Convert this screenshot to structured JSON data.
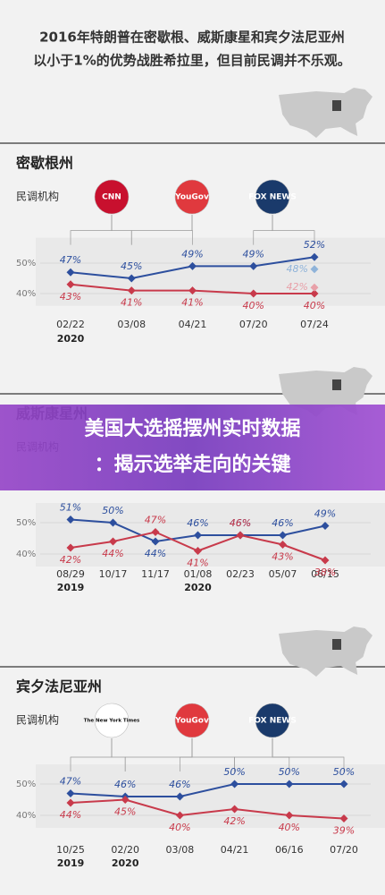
{
  "header": {
    "line1": "2016年特朗普在密歇根、威斯康星和宾夕法尼亚州",
    "line2": "以小于1%的优势战胜希拉里，但目前民调并不乐观。"
  },
  "banner": {
    "line1": "美国大选摇摆州实时数据",
    "line2": "：揭示选举走向的关键"
  },
  "chart_data": [
    {
      "type": "line",
      "title": "密歇根州",
      "pollster_label": "民调机构",
      "pollsters": [
        {
          "name": "CNN",
          "color": "#c8102e"
        },
        {
          "name": "YouGov",
          "color": "#e0393e"
        },
        {
          "name": "FOX NEWS",
          "color": "#1a3a6b"
        }
      ],
      "categories": [
        "02/22",
        "03/08",
        "04/21",
        "07/20",
        "07/24"
      ],
      "years": [
        "2020",
        null,
        null,
        null,
        null
      ],
      "series": [
        {
          "color": "#2d4f9e",
          "values": [
            47,
            45,
            49,
            49,
            52
          ],
          "value_labels": [
            "47%",
            "45%",
            "49%",
            "49%",
            "52%"
          ]
        },
        {
          "color": "#c83a4b",
          "values": [
            43,
            41,
            41,
            40,
            40
          ],
          "value_labels": [
            "43%",
            "41%",
            "41%",
            "40%",
            "40%"
          ]
        },
        {
          "color": "#8fb3d9",
          "values": [
            null,
            null,
            null,
            null,
            48
          ],
          "value_labels": [
            null,
            null,
            null,
            null,
            "48%"
          ]
        },
        {
          "color": "#e8a0a8",
          "values": [
            null,
            null,
            null,
            null,
            42
          ],
          "value_labels": [
            null,
            null,
            null,
            null,
            "42%"
          ]
        }
      ],
      "ylim": [
        36,
        56
      ],
      "yticks": [
        {
          "value": 40,
          "label": "40%"
        },
        {
          "value": 50,
          "label": "50%"
        }
      ],
      "grid": true
    },
    {
      "type": "line",
      "title": "威斯康星州",
      "pollster_label": "民调机构",
      "categories": [
        "08/29",
        "10/17",
        "11/17",
        "01/08",
        "02/23",
        "05/07",
        "06/15"
      ],
      "years": [
        "2019",
        null,
        null,
        "2020",
        null,
        null,
        null
      ],
      "series": [
        {
          "color": "#2d4f9e",
          "values": [
            51,
            50,
            44,
            46,
            46,
            46,
            49
          ],
          "value_labels": [
            "51%",
            "50%",
            "44%",
            "46%",
            "46%",
            "46%",
            "49%"
          ]
        },
        {
          "color": "#c83a4b",
          "values": [
            42,
            44,
            47,
            41,
            46,
            43,
            38
          ],
          "value_labels": [
            "42%",
            "44%",
            "47%",
            "41%",
            "46%",
            "43%",
            "38%"
          ]
        }
      ],
      "ylim": [
        36,
        54
      ],
      "yticks": [
        {
          "value": 40,
          "label": "40%"
        },
        {
          "value": 50,
          "label": "50%"
        }
      ],
      "grid": true
    },
    {
      "type": "line",
      "title": "宾夕法尼亚州",
      "pollster_label": "民调机构",
      "pollsters": [
        {
          "name": "The New York Times",
          "color": "#ffffff"
        },
        {
          "name": "YouGov",
          "color": "#e0393e"
        },
        {
          "name": "FOX NEWS",
          "color": "#1a3a6b"
        }
      ],
      "categories": [
        "10/25",
        "02/20",
        "03/08",
        "04/21",
        "06/16",
        "07/20"
      ],
      "years": [
        "2019",
        "2020",
        null,
        null,
        null,
        null
      ],
      "series": [
        {
          "color": "#2d4f9e",
          "values": [
            47,
            46,
            46,
            50,
            50,
            50
          ],
          "value_labels": [
            "47%",
            "46%",
            "46%",
            "50%",
            "50%",
            "50%"
          ]
        },
        {
          "color": "#c83a4b",
          "values": [
            44,
            45,
            40,
            42,
            40,
            39
          ],
          "value_labels": [
            "44%",
            "45%",
            "40%",
            "42%",
            "40%",
            "39%"
          ]
        }
      ],
      "ylim": [
        36,
        54
      ],
      "yticks": [
        {
          "value": 40,
          "label": "40%"
        },
        {
          "value": 50,
          "label": "50%"
        }
      ],
      "grid": true
    }
  ]
}
